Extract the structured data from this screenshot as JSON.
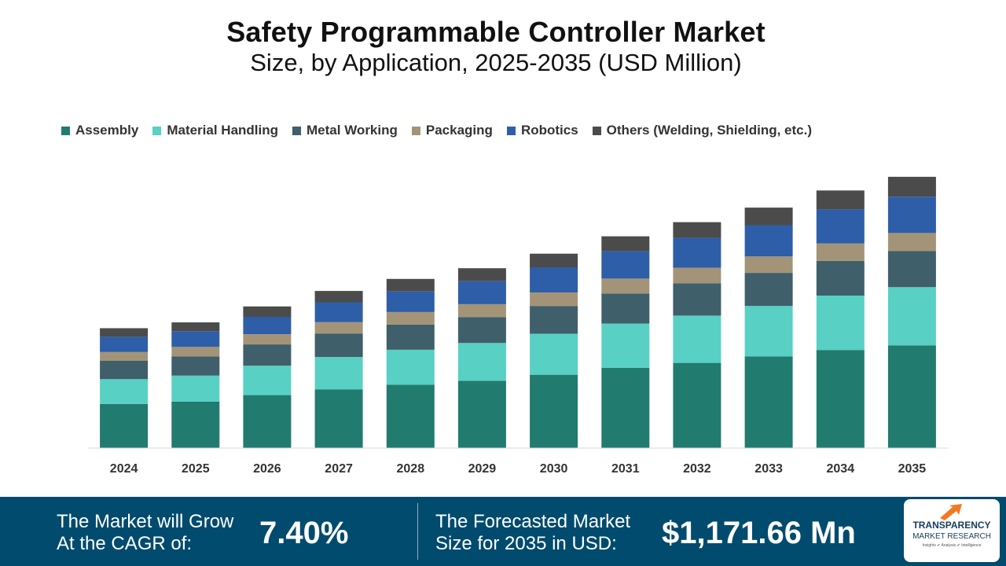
{
  "header": {
    "title": "Safety Programmable Controller Market",
    "subtitle": "Size, by Application, 2025-2035 (USD Million)"
  },
  "legend": [
    {
      "label": "Assembly",
      "color": "#217b6f"
    },
    {
      "label": "Material Handling",
      "color": "#58d0c3"
    },
    {
      "label": "Metal Working",
      "color": "#3f5f6b"
    },
    {
      "label": "Packaging",
      "color": "#a39478"
    },
    {
      "label": "Robotics",
      "color": "#2e5ea8"
    },
    {
      "label": "Others (Welding, Shielding, etc.)",
      "color": "#4b4b4b"
    }
  ],
  "chart_data": {
    "type": "bar",
    "stacked": true,
    "title": "Safety Programmable Controller Market",
    "subtitle": "Size, by Application, 2025-2035 (USD Million)",
    "xlabel": "",
    "ylabel": "",
    "categories": [
      "2024",
      "2025",
      "2026",
      "2027",
      "2028",
      "2029",
      "2030",
      "2031",
      "2032",
      "2033",
      "2034",
      "2035"
    ],
    "ylim": [
      0,
      1171.66
    ],
    "grid": false,
    "legend_position": "top-left",
    "series": [
      {
        "name": "Assembly",
        "color": "#217b6f",
        "values": [
          191,
          201,
          229,
          253,
          274,
          291,
          317,
          347,
          368,
          396,
          424,
          444
        ]
      },
      {
        "name": "Material Handling",
        "color": "#58d0c3",
        "values": [
          107,
          112,
          127,
          140,
          151,
          163,
          177,
          191,
          204,
          218,
          235,
          251
        ]
      },
      {
        "name": "Metal Working",
        "color": "#3f5f6b",
        "values": [
          80,
          83,
          92,
          102,
          109,
          112,
          119,
          130,
          140,
          143,
          150,
          156
        ]
      },
      {
        "name": "Packaging",
        "color": "#a39478",
        "values": [
          37,
          41,
          44,
          49,
          54,
          56,
          59,
          64,
          67,
          71,
          75,
          78
        ]
      },
      {
        "name": "Robotics",
        "color": "#2e5ea8",
        "values": [
          66,
          68,
          75,
          86,
          89,
          99,
          109,
          119,
          129,
          135,
          147,
          157
        ]
      },
      {
        "name": "Others (Welding, Shielding, etc.)",
        "color": "#4b4b4b",
        "values": [
          37,
          38,
          45,
          49,
          54,
          56,
          59,
          64,
          68,
          76,
          82,
          86
        ]
      }
    ]
  },
  "footer": {
    "cagr_text_line1": "The Market will Grow",
    "cagr_text_line2": "At the CAGR of:",
    "cagr_value": "7.40%",
    "forecast_text_line1": "The Forecasted Market",
    "forecast_text_line2": "Size for 2035 in USD:",
    "forecast_value": "$1,171.66 Mn"
  },
  "logo": {
    "name_line1": "TRANSPARENCY",
    "name_line2": "MARKET RESEARCH",
    "tagline": "Insights ✔ Analysis ✔ Intelligence"
  }
}
